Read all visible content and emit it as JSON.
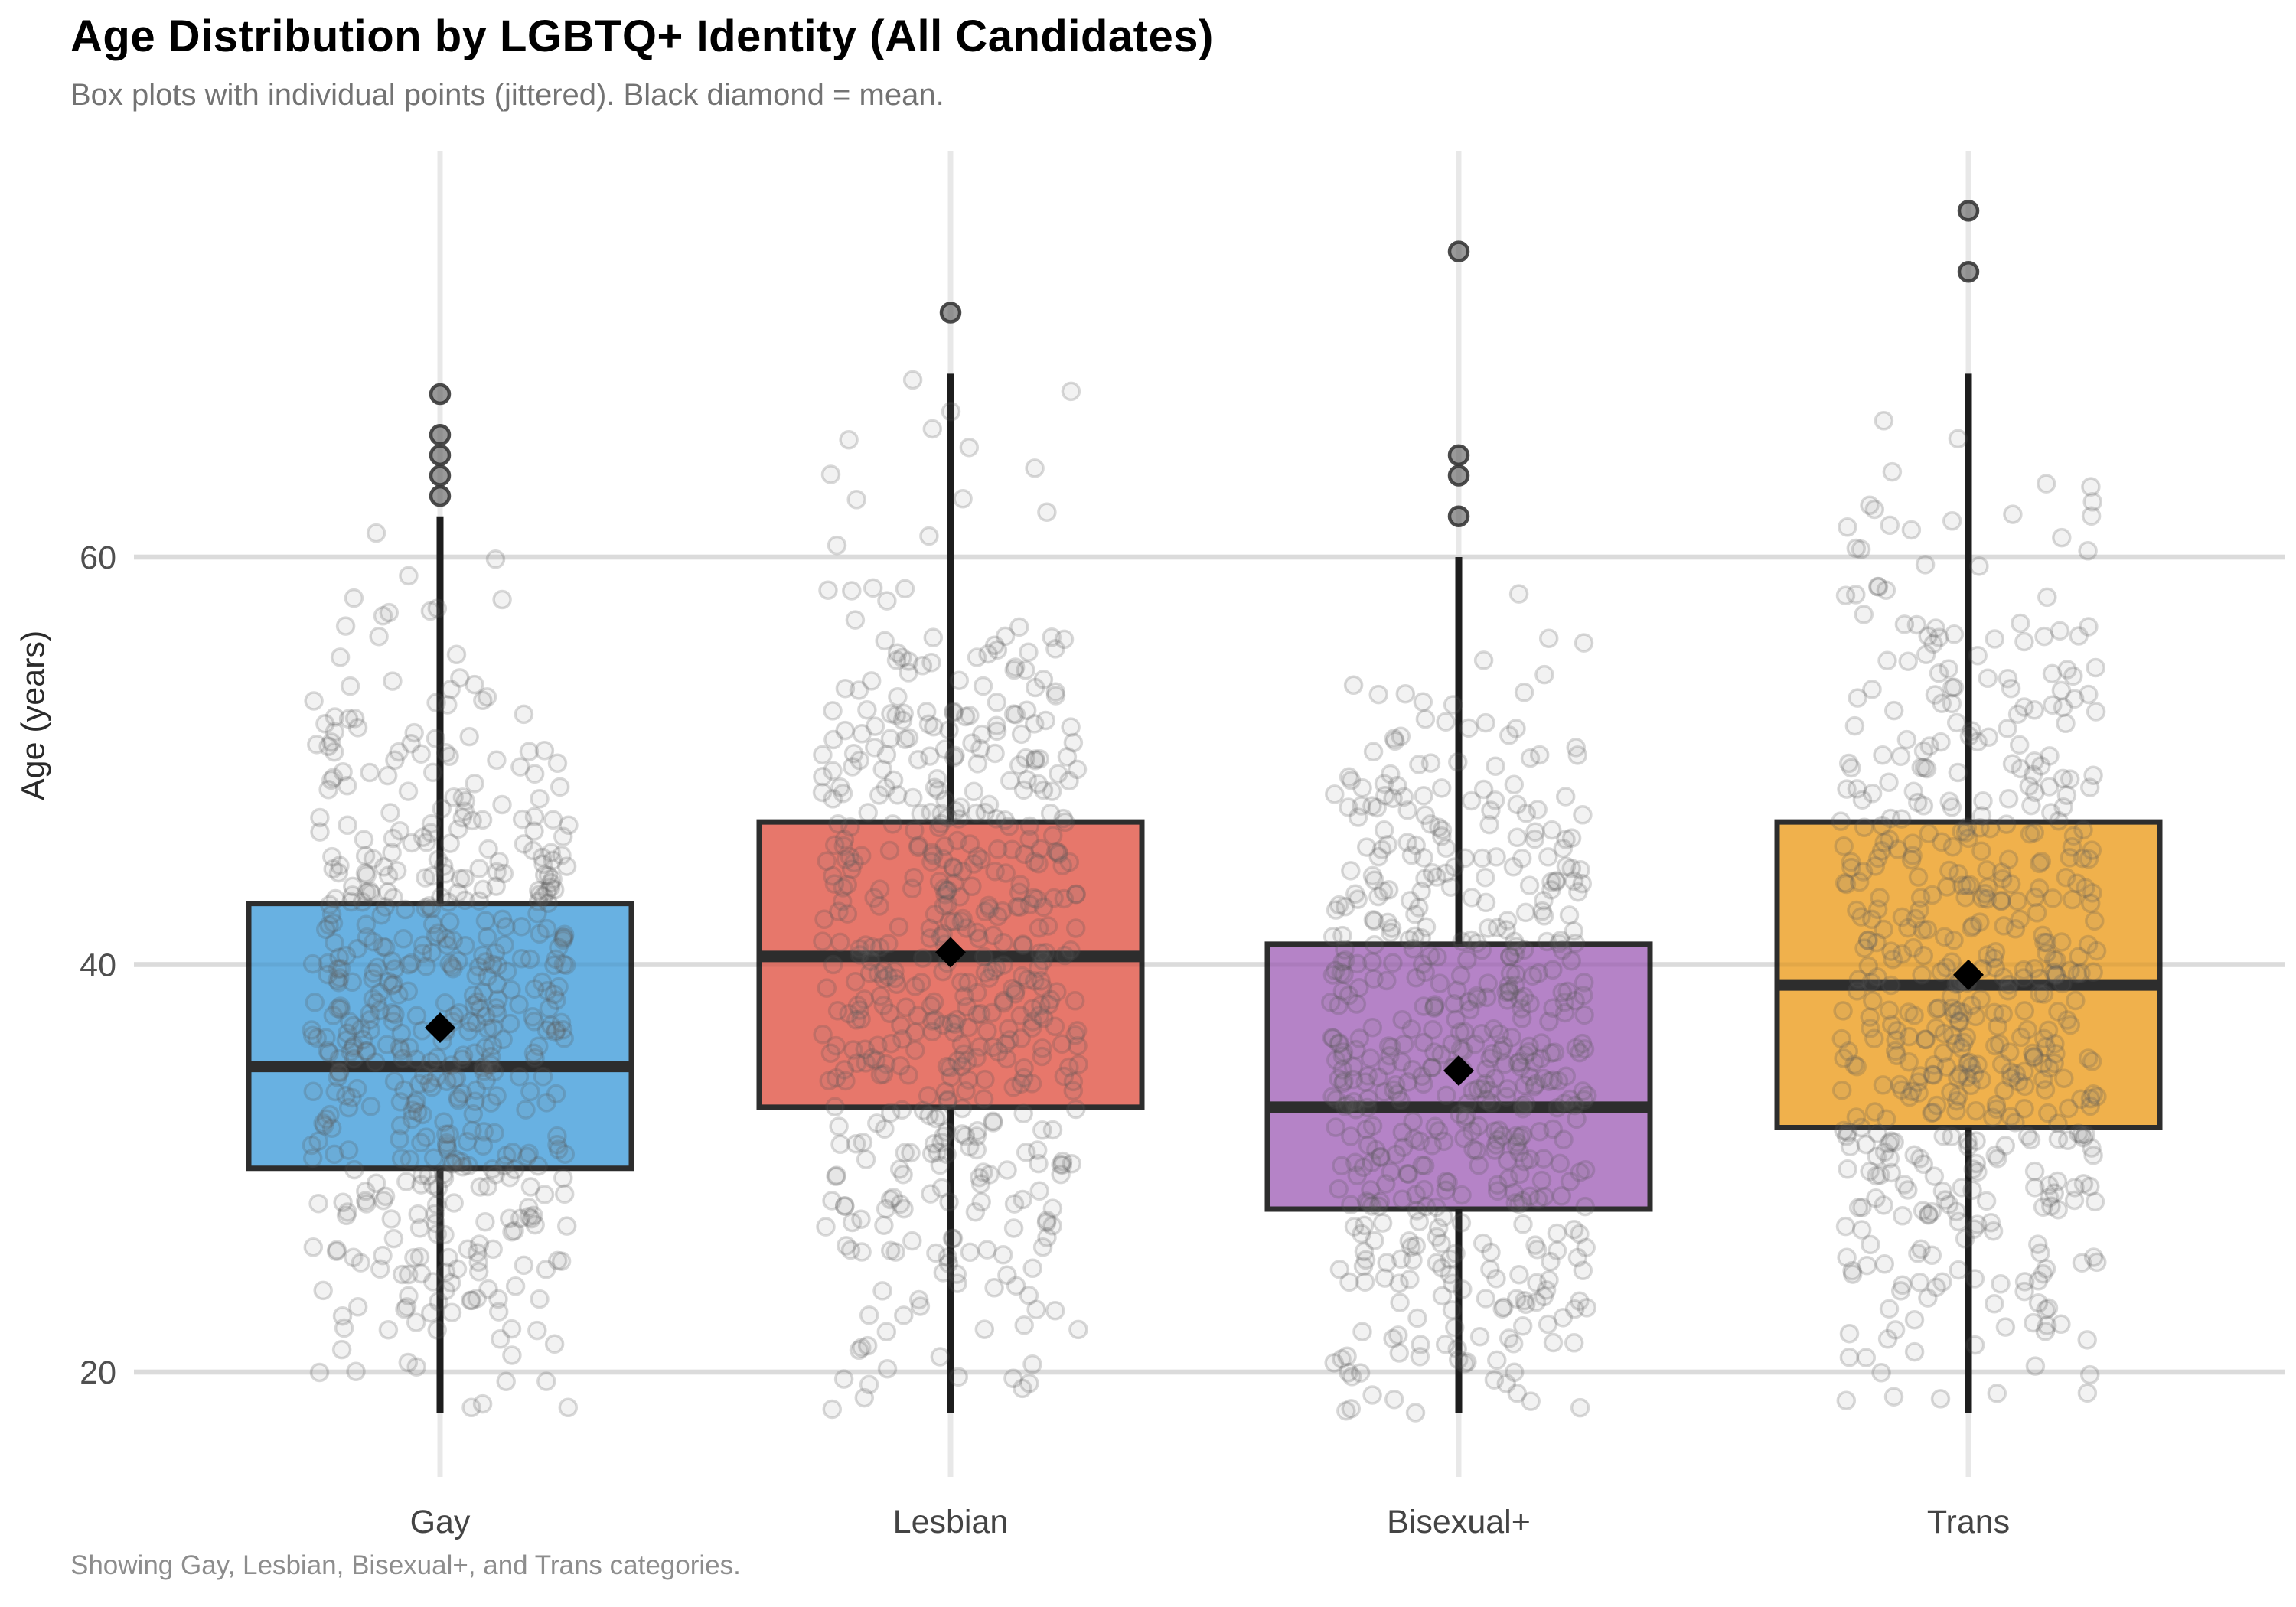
{
  "header": {
    "title": "Age Distribution by LGBTQ+ Identity (All Candidates)",
    "subtitle": "Box plots with individual points (jittered). Black diamond = mean."
  },
  "footer": {
    "caption": "Showing Gay, Lesbian, Bisexual+, and Trans categories."
  },
  "axes": {
    "ylabel": "Age (years)"
  },
  "chart_data": {
    "type": "boxplot",
    "title": "Age Distribution by LGBTQ+ Identity (All Candidates)",
    "subtitle": "Box plots with individual points (jittered). Black diamond = mean.",
    "caption": "Showing Gay, Lesbian, Bisexual+, and Trans categories.",
    "ylabel": "Age (years)",
    "ylim": [
      15,
      80
    ],
    "yticks": [
      20,
      40,
      60
    ],
    "grid": "light horizontal gridlines at yticks plus light vertical guide at each category",
    "legend": "none",
    "mean_marker": {
      "shape": "diamond",
      "color": "#000000"
    },
    "point_style": {
      "shape": "open-circle",
      "color": "gray",
      "alpha": 0.18
    },
    "categories": [
      "Gay",
      "Lesbian",
      "Bisexual+",
      "Trans"
    ],
    "series": [
      {
        "name": "Gay",
        "color": "#68B1E2",
        "q1": 30,
        "median": 35,
        "q3": 43,
        "mean": 36.9,
        "whisker_low": 18,
        "whisker_high": 62,
        "outliers": [
          63,
          64,
          65,
          66,
          68
        ],
        "jitter_points": {
          "n": 540,
          "center": 36.5,
          "spread": 9.2,
          "min": 18,
          "max": 62,
          "seed": 11
        }
      },
      {
        "name": "Lesbian",
        "color": "#E7776B",
        "q1": 33,
        "median": 40.4,
        "q3": 47,
        "mean": 40.6,
        "whisker_low": 18,
        "whisker_high": 69,
        "outliers": [
          72
        ],
        "jitter_points": {
          "n": 540,
          "center": 40,
          "spread": 10.2,
          "min": 18,
          "max": 69,
          "seed": 22
        }
      },
      {
        "name": "Bisexual+",
        "color": "#B583C7",
        "q1": 28,
        "median": 33,
        "q3": 41,
        "mean": 34.8,
        "whisker_low": 18,
        "whisker_high": 60,
        "outliers": [
          62,
          64,
          65,
          75
        ],
        "jitter_points": {
          "n": 540,
          "center": 34.5,
          "spread": 9.4,
          "min": 18,
          "max": 60,
          "seed": 33
        }
      },
      {
        "name": "Trans",
        "color": "#F0B14C",
        "q1": 32,
        "median": 39,
        "q3": 47,
        "mean": 39.5,
        "whisker_low": 18,
        "whisker_high": 69,
        "outliers": [
          74,
          77
        ],
        "jitter_points": {
          "n": 540,
          "center": 39,
          "spread": 10.4,
          "min": 18,
          "max": 69,
          "seed": 44
        }
      }
    ]
  }
}
